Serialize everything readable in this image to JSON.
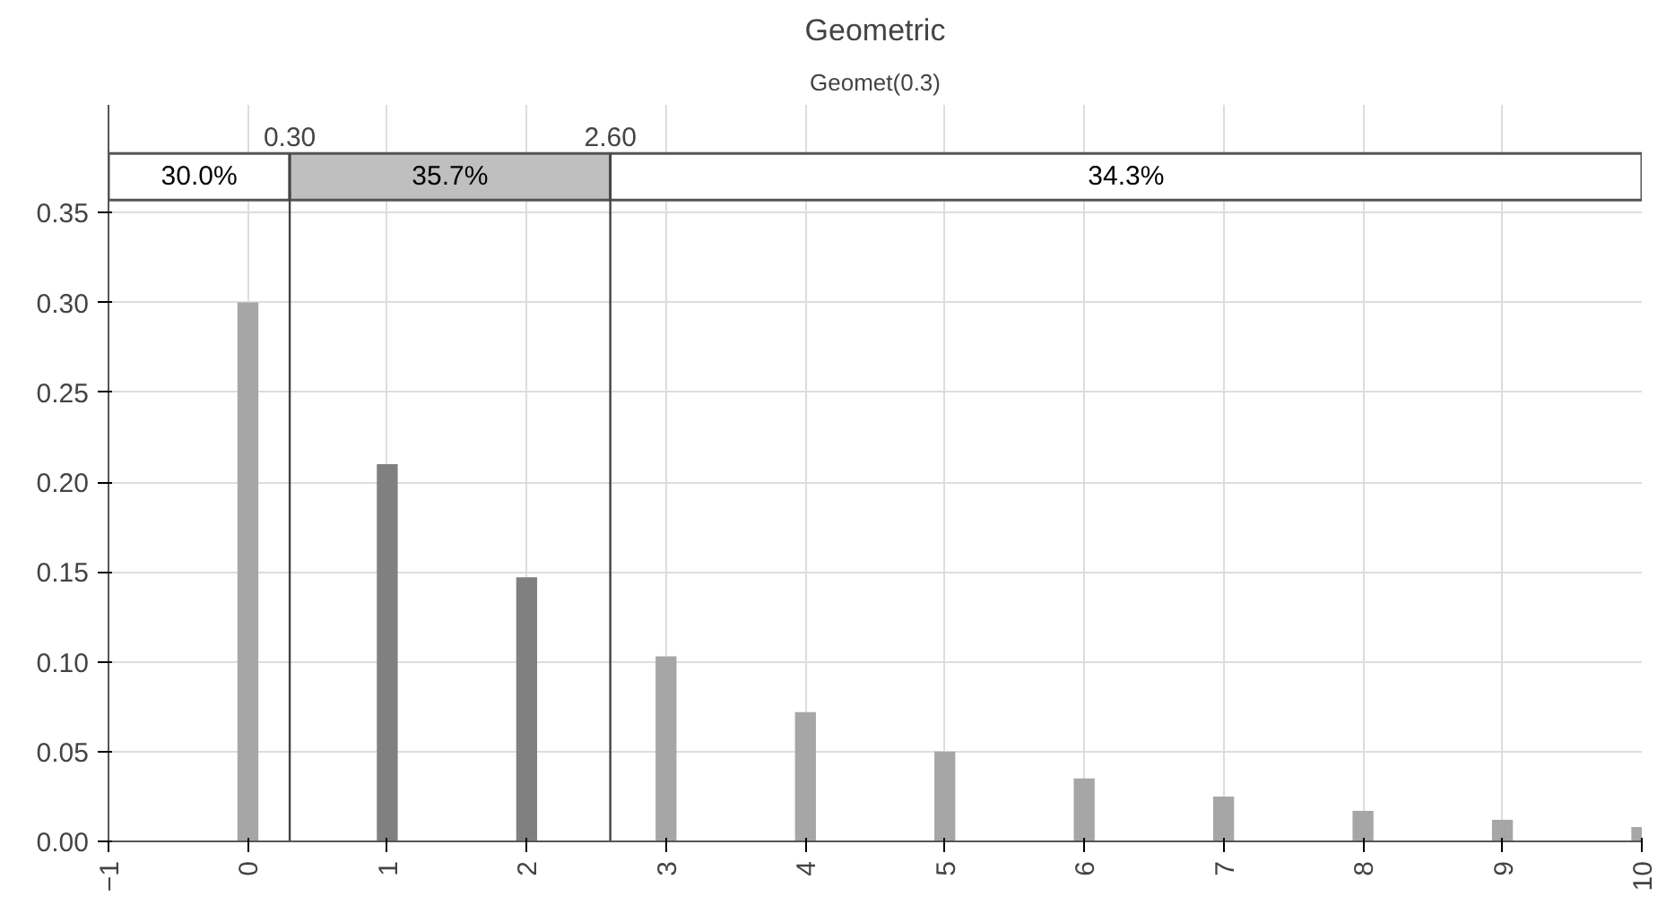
{
  "chart_data": {
    "type": "bar",
    "title": "Geometric",
    "subtitle": "Geomet(0.3)",
    "x": [
      0,
      1,
      2,
      3,
      4,
      5,
      6,
      7,
      8,
      9,
      10
    ],
    "values": [
      0.3,
      0.21,
      0.147,
      0.103,
      0.072,
      0.05,
      0.035,
      0.025,
      0.017,
      0.012,
      0.008
    ],
    "colors": [
      "#a6a6a6",
      "#808080",
      "#808080",
      "#a6a6a6",
      "#a6a6a6",
      "#a6a6a6",
      "#a6a6a6",
      "#a6a6a6",
      "#a6a6a6",
      "#a6a6a6",
      "#a6a6a6"
    ],
    "xlim": [
      -1,
      10
    ],
    "ylim": [
      0,
      0.41
    ],
    "xticks": [
      {
        "value": -1,
        "label": "−1"
      },
      0,
      1,
      2,
      3,
      4,
      5,
      6,
      7,
      8,
      9,
      10
    ],
    "yticks": [
      {
        "value": 0,
        "label": "0.00"
      },
      {
        "value": 0.05,
        "label": "0.05"
      },
      {
        "value": 0.1,
        "label": "0.10"
      },
      {
        "value": 0.15,
        "label": "0.15"
      },
      {
        "value": 0.2,
        "label": "0.20"
      },
      {
        "value": 0.25,
        "label": "0.25"
      },
      {
        "value": 0.3,
        "label": "0.30"
      },
      {
        "value": 0.35,
        "label": "0.35"
      }
    ],
    "grid": true,
    "ref_lines": [
      {
        "axis": "x",
        "value": 0.3,
        "label": "0.30"
      },
      {
        "axis": "x",
        "value": 2.6,
        "label": "2.60"
      }
    ],
    "bands": [
      {
        "axis": "x",
        "from": -1,
        "to": 0.3,
        "label": "30.0%",
        "color": "#ffffff"
      },
      {
        "axis": "x",
        "from": 0.3,
        "to": 2.6,
        "label": "35.7%",
        "color": "#bfbfbf"
      },
      {
        "axis": "x",
        "from": 2.6,
        "to": 10,
        "label": "34.3%",
        "color": "#ffffff"
      }
    ]
  }
}
